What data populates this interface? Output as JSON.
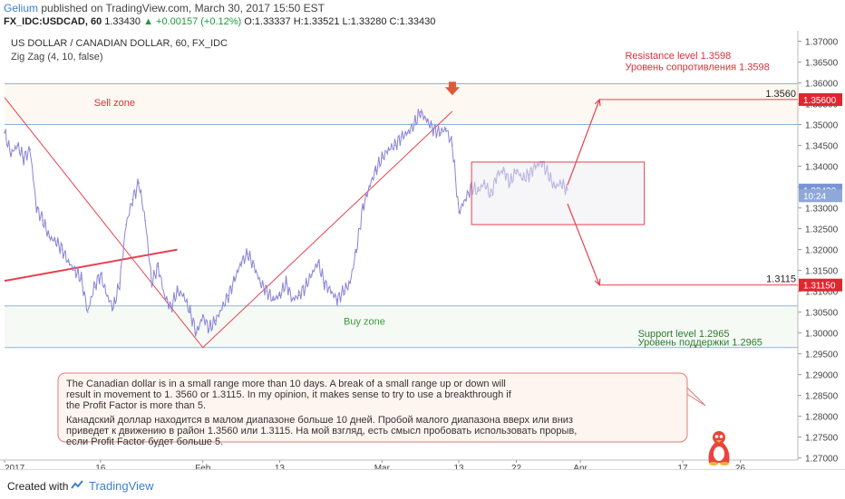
{
  "header": {
    "author": "Gelium",
    "published": "published on TradingView.com, March 30, 2017 15:50 EST",
    "symbol": "FX_IDC:USDCAD, 60",
    "last": "1.33430",
    "change": "+0.00157 (+0.12%)",
    "open": "O:1.33337",
    "high": "H:1.33521",
    "low": "L:1.33280",
    "close": "C:1.33430"
  },
  "chart_data": {
    "type": "line",
    "title": "US DOLLAR / CANADIAN DOLLAR, 60, FX_IDC",
    "indicator": "Zig Zag (4, 10, false)",
    "ylim": [
      1.2695,
      1.3725
    ],
    "yticks": [
      "1.37000",
      "1.36500",
      "1.36000",
      "1.35500",
      "1.35000",
      "1.34500",
      "1.34000",
      "1.33500",
      "1.33000",
      "1.32500",
      "1.32000",
      "1.31500",
      "1.31000",
      "1.30500",
      "1.30000",
      "1.29500",
      "1.29000",
      "1.28500",
      "1.28000",
      "1.27500",
      "1.27000"
    ],
    "xticks": [
      {
        "label": "2017",
        "day": 0
      },
      {
        "label": "16",
        "day": 15
      },
      {
        "label": "Feb",
        "day": 31
      },
      {
        "label": "13",
        "day": 43
      },
      {
        "label": "Mar",
        "day": 59
      },
      {
        "label": "13",
        "day": 71
      },
      {
        "label": "22",
        "day": 80
      },
      {
        "label": "Apr",
        "day": 90
      },
      {
        "label": "17",
        "day": 106
      },
      {
        "label": "26",
        "day": 115
      }
    ],
    "price_series": {
      "x": [
        0,
        1,
        2,
        3,
        4,
        5,
        6,
        7,
        8,
        9,
        10,
        11,
        12,
        13,
        14,
        15,
        16,
        17,
        18,
        19,
        20,
        21,
        22,
        23,
        24,
        25,
        26,
        27,
        28,
        29,
        30,
        31,
        32,
        33,
        34,
        35,
        36,
        37,
        38,
        39,
        40,
        41,
        42,
        43,
        44,
        45,
        46,
        47,
        48,
        49,
        50,
        51,
        52,
        53,
        54,
        55,
        56,
        57,
        58,
        59,
        60,
        61,
        62,
        63,
        64,
        65,
        66,
        67,
        68,
        69,
        70,
        71,
        72,
        73,
        74,
        75,
        76,
        77,
        78,
        79,
        80,
        81,
        82,
        83,
        84,
        85,
        86,
        87,
        88
      ],
      "y": [
        1.348,
        1.343,
        1.345,
        1.342,
        1.344,
        1.33,
        1.327,
        1.323,
        1.322,
        1.32,
        1.317,
        1.315,
        1.313,
        1.305,
        1.311,
        1.314,
        1.309,
        1.306,
        1.312,
        1.326,
        1.332,
        1.336,
        1.327,
        1.312,
        1.316,
        1.309,
        1.306,
        1.31,
        1.309,
        1.305,
        1.3,
        1.304,
        1.301,
        1.303,
        1.306,
        1.309,
        1.313,
        1.317,
        1.319,
        1.316,
        1.312,
        1.31,
        1.308,
        1.309,
        1.312,
        1.308,
        1.309,
        1.311,
        1.314,
        1.317,
        1.312,
        1.31,
        1.308,
        1.31,
        1.312,
        1.32,
        1.33,
        1.335,
        1.339,
        1.342,
        1.344,
        1.345,
        1.347,
        1.348,
        1.35,
        1.353,
        1.351,
        1.349,
        1.348,
        1.349,
        1.345,
        1.329,
        1.332,
        1.335,
        1.334,
        1.336,
        1.333,
        1.338,
        1.339,
        1.336,
        1.339,
        1.337,
        1.338,
        1.34,
        1.341,
        1.338,
        1.335,
        1.336,
        1.3343
      ]
    },
    "zigzag": {
      "x": [
        0,
        31,
        70
      ],
      "y": [
        1.3565,
        1.2965,
        1.3532
      ]
    },
    "trendline": {
      "x": [
        0,
        27
      ],
      "y": [
        1.3125,
        1.32
      ]
    },
    "horizontal_levels": [
      1.3598,
      1.35,
      1.3065,
      1.2965
    ],
    "range_box": {
      "x": [
        73,
        100
      ],
      "y": [
        1.326,
        1.341
      ]
    },
    "projections": [
      {
        "from_day": 88,
        "from_y": 1.3355,
        "to_day": 93,
        "to_y": 1.356,
        "label": "1.3560"
      },
      {
        "from_day": 88,
        "from_y": 1.331,
        "to_day": 93,
        "to_y": 1.3115,
        "label": "1.3115"
      }
    ],
    "down_arrow": {
      "day": 70,
      "y": 1.3555
    },
    "annotations": {
      "sell_zone": "Sell zone",
      "buy_zone": "Buy zone",
      "resistance_en": "Resistance level 1.3598",
      "resistance_ru": "Уровень сопротивления 1.3598",
      "support_en": "Support level 1.2965",
      "support_ru": "Уровень поддержки 1.2965"
    },
    "price_tags": [
      {
        "label": "1.35600",
        "y": 1.356,
        "kind": "red"
      },
      {
        "label": "1.33430",
        "y": 1.3343,
        "kind": "blue"
      },
      {
        "label": "10:24",
        "y": 1.3329,
        "kind": "blue-small"
      },
      {
        "label": "1.31150",
        "y": 1.3115,
        "kind": "red"
      }
    ],
    "note": {
      "en": "The Canadian dollar is in a small range more than 10 days. A break of a small range up or down will result in movement to 1. 3560 or 1.3115. In my opinion, it makes sense to try to use a breakthrough if the Profit Factor is more than 5.",
      "ru": "Канадский доллар находится в малом диапазоне больше 10 дней. Пробой малого диапазона вверх или вниз приведет к движению в район 1.3560 или 1.3115. На мой взгляд, есть смысл пробовать использовать прорыв, если Profit Factor будет больше 5."
    }
  },
  "colors": {
    "price": "#8a83d6",
    "trend": "#e8414f",
    "level": "#8fb3d9",
    "note_bg": "#fef5f0",
    "note_border": "#e27b7b",
    "buy_zone_text": "#3c9a3c",
    "sell_zone_text": "#d8323a"
  },
  "footer": {
    "created_with": "Created with",
    "brand": "TradingView"
  }
}
